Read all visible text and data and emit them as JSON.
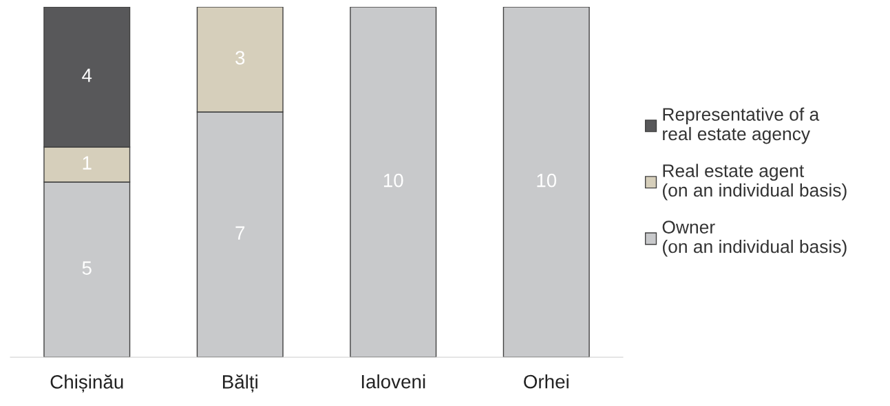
{
  "chart_data": {
    "type": "bar",
    "stacked": true,
    "categories": [
      "Chișinău",
      "Bălți",
      "Ialoveni",
      "Orhei"
    ],
    "series": [
      {
        "name": "Owner\n(on an individual basis)",
        "color": "#c8c9cb",
        "values": [
          5,
          7,
          10,
          10
        ],
        "value_labels": [
          "5",
          "7",
          "10",
          "10"
        ]
      },
      {
        "name": "Real estate agent\n(on an individual basis)",
        "color": "#d6cfbb",
        "values": [
          1,
          3,
          0,
          0
        ],
        "value_labels": [
          "1",
          "3",
          null,
          null
        ]
      },
      {
        "name": "Representative of a\nreal estate agency",
        "color": "#58585a",
        "values": [
          4,
          0,
          0,
          0
        ],
        "value_labels": [
          "4",
          null,
          null,
          null
        ]
      }
    ],
    "legend": "right",
    "grid": false
  }
}
